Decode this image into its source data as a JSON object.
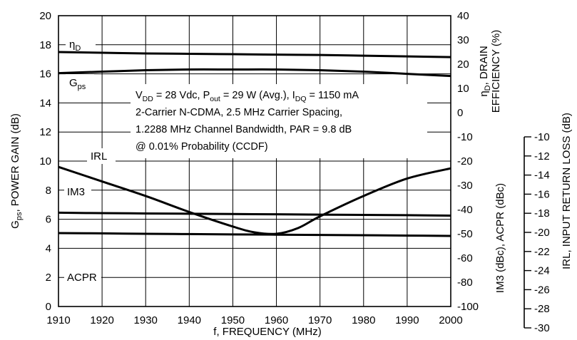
{
  "chart_data": {
    "type": "line",
    "x_axis": {
      "label": "f, FREQUENCY (MHz)",
      "range": [
        1910,
        2000
      ],
      "ticks": [
        1910,
        1920,
        1930,
        1940,
        1950,
        1960,
        1970,
        1980,
        1990,
        2000
      ]
    },
    "y_left": {
      "label_main": "G",
      "label_sub": "ps",
      "label_rest": ", POWER GAIN (dB)",
      "range": [
        0,
        20
      ],
      "ticks": [
        0,
        2,
        4,
        6,
        8,
        10,
        12,
        14,
        16,
        18,
        20
      ]
    },
    "y_right1": {
      "label_line1": "η",
      "label_line1_sub": "D",
      "label_line1_rest": ", DRAIN",
      "label_line2": "EFFICIENCY (%)",
      "label_line3": "IM3 (dBc), ACPR (dBc)",
      "range": [
        -100,
        40
      ],
      "ticks": [
        40,
        30,
        20,
        10,
        0,
        -10,
        -20,
        -30,
        -40,
        -50,
        -60,
        -80,
        -100
      ]
    },
    "y_right2": {
      "label": "IRL, INPUT RETURN LOSS (dB)",
      "range": [
        -30,
        -10
      ],
      "ticks": [
        -10,
        -12,
        -14,
        -16,
        -18,
        -20,
        -22,
        -24,
        -26,
        -28,
        -30
      ]
    },
    "annotation": {
      "line1_parts": [
        "V",
        "DD",
        " = 28 Vdc, P",
        "out",
        " = 29 W (Avg.), I",
        "DQ",
        " = 1150 mA"
      ],
      "line2": "2-Carrier N-CDMA, 2.5 MHz Carrier Spacing,",
      "line3": "1.2288 MHz Channel Bandwidth, PAR = 9.8 dB",
      "line4": "@ 0.01% Probability (CCDF)"
    },
    "series": [
      {
        "name": "ηD",
        "label_main": "η",
        "label_sub": "D",
        "axis": "y_left",
        "x": [
          1910,
          1920,
          1930,
          1940,
          1950,
          1960,
          1970,
          1980,
          1990,
          2000
        ],
        "y": [
          17.5,
          17.45,
          17.4,
          17.38,
          17.35,
          17.32,
          17.3,
          17.25,
          17.2,
          17.15
        ]
      },
      {
        "name": "Gps",
        "label_main": "G",
        "label_sub": "ps",
        "axis": "y_left",
        "x": [
          1910,
          1920,
          1930,
          1940,
          1950,
          1960,
          1970,
          1980,
          1990,
          2000
        ],
        "y": [
          16.05,
          16.15,
          16.25,
          16.3,
          16.3,
          16.3,
          16.25,
          16.15,
          16.0,
          15.85
        ]
      },
      {
        "name": "IRL",
        "label_main": "IRL",
        "axis": "y_left",
        "x": [
          1910,
          1920,
          1930,
          1940,
          1950,
          1955,
          1960,
          1965,
          1970,
          1980,
          1990,
          2000
        ],
        "y": [
          9.6,
          8.6,
          7.6,
          6.5,
          5.5,
          5.1,
          5.0,
          5.4,
          6.2,
          7.6,
          8.8,
          9.5
        ]
      },
      {
        "name": "IM3",
        "label_main": "IM3",
        "axis": "y_left",
        "x": [
          1910,
          1920,
          1930,
          1940,
          1950,
          1960,
          1970,
          1980,
          1990,
          2000
        ],
        "y": [
          6.45,
          6.42,
          6.4,
          6.38,
          6.36,
          6.34,
          6.32,
          6.3,
          6.28,
          6.25
        ]
      },
      {
        "name": "ACPR",
        "label_main": "ACPR",
        "axis": "y_left",
        "x": [
          1910,
          1920,
          1930,
          1940,
          1950,
          1960,
          1970,
          1980,
          1990,
          2000
        ],
        "y": [
          5.05,
          5.03,
          5.0,
          4.98,
          4.96,
          4.94,
          4.92,
          4.9,
          4.88,
          4.85
        ]
      }
    ],
    "grid": true,
    "legend": "inline labels"
  }
}
